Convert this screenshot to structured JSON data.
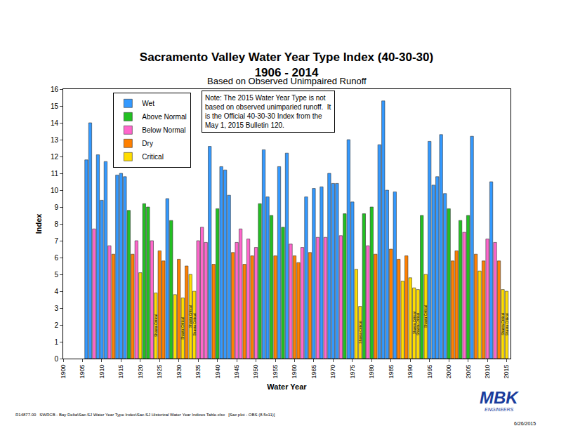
{
  "chart_data": {
    "type": "bar",
    "title": [
      "Sacramento Valley Water Year Type Index (40-30-30)",
      "1906 - 2014"
    ],
    "subtitle": "Based on Observed Unimpaired Runoff",
    "x_label": "Water Year",
    "y_label": "Index",
    "x": [
      1906,
      1907,
      1908,
      1909,
      1910,
      1911,
      1912,
      1913,
      1914,
      1915,
      1916,
      1917,
      1918,
      1919,
      1920,
      1921,
      1922,
      1923,
      1924,
      1925,
      1926,
      1927,
      1928,
      1929,
      1930,
      1931,
      1932,
      1933,
      1934,
      1935,
      1936,
      1937,
      1938,
      1939,
      1940,
      1941,
      1942,
      1943,
      1944,
      1945,
      1946,
      1947,
      1948,
      1949,
      1950,
      1951,
      1952,
      1953,
      1954,
      1955,
      1956,
      1957,
      1958,
      1959,
      1960,
      1961,
      1962,
      1963,
      1964,
      1965,
      1966,
      1967,
      1968,
      1969,
      1970,
      1971,
      1972,
      1973,
      1974,
      1975,
      1976,
      1977,
      1978,
      1979,
      1980,
      1981,
      1982,
      1983,
      1984,
      1985,
      1986,
      1987,
      1988,
      1989,
      1990,
      1991,
      1992,
      1993,
      1994,
      1995,
      1996,
      1997,
      1998,
      1999,
      2000,
      2001,
      2002,
      2003,
      2004,
      2005,
      2006,
      2007,
      2008,
      2009,
      2010,
      2011,
      2012,
      2013,
      2014,
      2015
    ],
    "series": [
      {
        "name": "Wet",
        "color": "#3399ff",
        "values": [
          11.8,
          14.0,
          null,
          12.1,
          9.4,
          11.7,
          null,
          null,
          10.9,
          11.0,
          10.8,
          null,
          null,
          null,
          null,
          null,
          null,
          null,
          null,
          null,
          null,
          9.5,
          null,
          null,
          null,
          null,
          null,
          null,
          null,
          null,
          null,
          null,
          12.6,
          null,
          null,
          11.4,
          11.2,
          9.7,
          null,
          null,
          null,
          null,
          null,
          null,
          null,
          null,
          12.4,
          9.6,
          null,
          null,
          11.4,
          null,
          12.2,
          null,
          null,
          null,
          null,
          9.6,
          null,
          10.1,
          null,
          10.2,
          null,
          11.0,
          10.4,
          10.4,
          null,
          null,
          13.0,
          9.3,
          null,
          null,
          null,
          null,
          null,
          null,
          12.7,
          15.3,
          10.0,
          null,
          9.9,
          null,
          null,
          null,
          null,
          null,
          null,
          null,
          null,
          12.9,
          10.3,
          10.8,
          13.3,
          9.8,
          null,
          null,
          null,
          null,
          null,
          null,
          13.2,
          null,
          null,
          null,
          null,
          10.5,
          null,
          null,
          null,
          null
        ]
      },
      {
        "name": "Above Normal",
        "color": "#22c022",
        "values": [
          null,
          null,
          null,
          null,
          null,
          null,
          null,
          null,
          null,
          null,
          null,
          8.8,
          null,
          null,
          null,
          9.2,
          9.0,
          null,
          null,
          null,
          null,
          null,
          8.2,
          null,
          null,
          null,
          null,
          null,
          null,
          null,
          null,
          null,
          null,
          null,
          8.9,
          null,
          null,
          null,
          null,
          null,
          null,
          null,
          null,
          null,
          null,
          9.2,
          null,
          null,
          8.5,
          null,
          null,
          7.8,
          null,
          null,
          null,
          null,
          null,
          null,
          null,
          null,
          null,
          null,
          null,
          null,
          null,
          null,
          null,
          8.6,
          null,
          null,
          null,
          null,
          8.6,
          null,
          9.0,
          null,
          null,
          null,
          null,
          null,
          null,
          null,
          null,
          null,
          null,
          null,
          null,
          8.5,
          null,
          null,
          null,
          null,
          null,
          null,
          8.9,
          null,
          null,
          8.2,
          null,
          8.5,
          null,
          null,
          null,
          null,
          null,
          null,
          null,
          null,
          null,
          null
        ]
      },
      {
        "name": "Below Normal",
        "color": "#ff66cc",
        "values": [
          null,
          null,
          7.7,
          null,
          null,
          null,
          6.7,
          null,
          null,
          null,
          null,
          null,
          null,
          7.0,
          null,
          null,
          null,
          7.0,
          null,
          null,
          null,
          null,
          null,
          null,
          null,
          null,
          null,
          null,
          null,
          7.0,
          7.8,
          6.9,
          null,
          null,
          null,
          null,
          null,
          null,
          null,
          6.9,
          7.7,
          null,
          7.1,
          null,
          6.6,
          null,
          null,
          null,
          null,
          null,
          null,
          null,
          null,
          6.8,
          null,
          null,
          6.6,
          null,
          null,
          null,
          7.2,
          null,
          7.2,
          null,
          null,
          null,
          7.3,
          null,
          null,
          null,
          null,
          null,
          null,
          6.7,
          null,
          null,
          null,
          null,
          null,
          null,
          null,
          null,
          null,
          null,
          null,
          null,
          null,
          null,
          null,
          null,
          null,
          null,
          null,
          null,
          null,
          null,
          null,
          null,
          7.5,
          null,
          null,
          null,
          null,
          null,
          7.1,
          null,
          6.9,
          null,
          null,
          null
        ]
      },
      {
        "name": "Dry",
        "color": "#ff8000",
        "values": [
          null,
          null,
          null,
          null,
          null,
          null,
          null,
          6.2,
          null,
          null,
          null,
          null,
          6.2,
          null,
          null,
          null,
          null,
          null,
          null,
          6.4,
          5.8,
          null,
          null,
          null,
          5.9,
          null,
          5.5,
          null,
          null,
          null,
          null,
          null,
          null,
          5.6,
          null,
          null,
          null,
          null,
          6.3,
          null,
          null,
          5.6,
          null,
          6.1,
          null,
          null,
          null,
          null,
          null,
          6.1,
          null,
          null,
          null,
          null,
          6.1,
          5.7,
          null,
          null,
          6.3,
          null,
          null,
          null,
          null,
          null,
          null,
          null,
          null,
          null,
          null,
          null,
          null,
          null,
          null,
          null,
          null,
          6.2,
          null,
          null,
          null,
          6.5,
          null,
          5.9,
          null,
          6.1,
          null,
          null,
          null,
          null,
          null,
          null,
          null,
          null,
          null,
          null,
          null,
          5.8,
          6.4,
          null,
          null,
          null,
          null,
          6.2,
          null,
          5.8,
          null,
          null,
          null,
          5.8,
          null,
          null
        ]
      },
      {
        "name": "Critical",
        "color": "#ffdd00",
        "values": [
          null,
          null,
          null,
          null,
          null,
          null,
          null,
          null,
          null,
          null,
          null,
          null,
          null,
          null,
          5.1,
          null,
          null,
          null,
          3.9,
          null,
          null,
          null,
          null,
          3.8,
          null,
          3.6,
          null,
          5.0,
          4.0,
          null,
          null,
          null,
          null,
          null,
          null,
          null,
          null,
          null,
          null,
          null,
          null,
          null,
          null,
          null,
          null,
          null,
          null,
          null,
          null,
          null,
          null,
          null,
          null,
          null,
          null,
          null,
          null,
          null,
          null,
          null,
          null,
          null,
          null,
          null,
          null,
          null,
          null,
          null,
          null,
          null,
          5.3,
          3.1,
          null,
          null,
          null,
          null,
          null,
          null,
          null,
          null,
          null,
          null,
          4.6,
          null,
          4.8,
          4.2,
          4.1,
          null,
          5.0,
          null,
          null,
          null,
          null,
          null,
          null,
          null,
          null,
          null,
          null,
          null,
          null,
          null,
          5.2,
          null,
          null,
          null,
          null,
          null,
          4.1,
          4.0
        ]
      }
    ],
    "xlim": [
      1900,
      2016
    ],
    "xticks": [
      1900,
      1905,
      1910,
      1915,
      1920,
      1925,
      1930,
      1935,
      1940,
      1945,
      1950,
      1955,
      1960,
      1965,
      1970,
      1975,
      1980,
      1985,
      1990,
      1995,
      2000,
      2005,
      2010,
      2015
    ],
    "ylim": [
      0,
      16
    ],
    "yticks": [
      0,
      1,
      2,
      3,
      4,
      5,
      6,
      7,
      8,
      9,
      10,
      11,
      12,
      13,
      14,
      15,
      16
    ],
    "grid": false,
    "legend": "upper left",
    "annotations": [
      {
        "x": 1924,
        "text": "Shasta Critical"
      },
      {
        "x": 1931,
        "text": "Shasta Critical"
      },
      {
        "x": 1933,
        "text": "Shasta Critical"
      },
      {
        "x": 1934,
        "text": "Shasta Critical"
      },
      {
        "x": 1977,
        "text": "Shasta Critical"
      },
      {
        "x": 1991,
        "text": "Shasta Critical"
      },
      {
        "x": 1992,
        "text": "Shasta Critical"
      },
      {
        "x": 1994,
        "text": "Shasta Critical"
      },
      {
        "x": 2014,
        "text": "Shasta Critical"
      },
      {
        "x": 2015,
        "text": "Shasta Critical"
      }
    ],
    "note": [
      "Note: The 2015 Water Year Type is not",
      "based on observed unimparied runoff.  It",
      "is the Official 40-30-30 Index from the",
      "May 1, 2015 Bulletin 120."
    ],
    "source_note": "R14877.00   SWRCB - Bay Delta\\Sac-SJ Water Year Type Index\\Sac-SJ Historical Water Year Indices Table.xlsx   [Sac plot - OBS (8.5x11)]",
    "logo": [
      "MBK",
      "ENGINEERS"
    ],
    "date": "6/26/2015"
  }
}
